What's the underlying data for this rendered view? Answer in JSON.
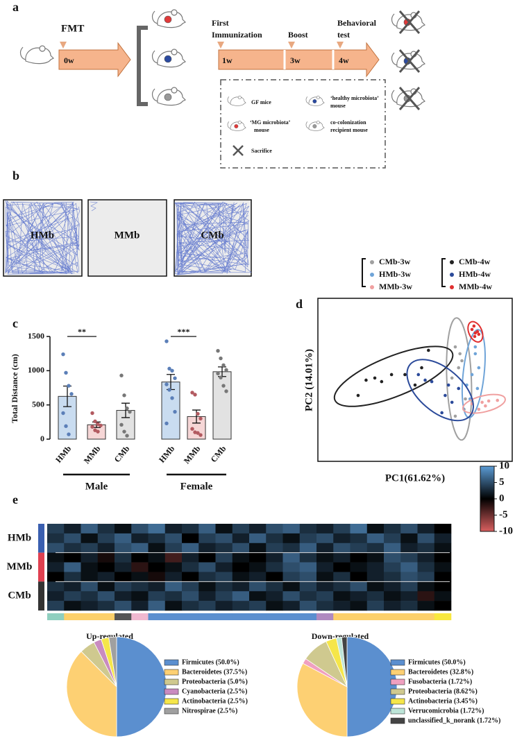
{
  "panel_labels": [
    "a",
    "b",
    "c",
    "d",
    "e"
  ],
  "panel_a": {
    "fmt": "FMT",
    "timepoints": [
      "0w",
      "1w",
      "3w",
      "4w"
    ],
    "steps": [
      [
        "First",
        "Immunization"
      ],
      [
        "Boost"
      ],
      [
        "Behavioral",
        "test"
      ]
    ],
    "legend": [
      [
        "GF mice"
      ],
      [
        "‘healthy microbiota’",
        "mouse"
      ],
      [
        "‘MG microbiota’",
        "mouse"
      ],
      [
        "co-colonization",
        "recipient mouse"
      ],
      [
        "Sacrifice"
      ]
    ]
  },
  "panel_b": {
    "arenas": [
      "HMb",
      "MMb",
      "CMb"
    ]
  },
  "chart_data": [
    {
      "type": "bar",
      "ylabel": "Total Distance (cm)",
      "categories": [
        "HMb",
        "MMb",
        "CMb",
        "HMb",
        "MMb",
        "CMb"
      ],
      "groups": [
        "Male",
        "Female"
      ],
      "values": [
        625,
        210,
        420,
        835,
        330,
        985
      ],
      "errors": [
        150,
        40,
        105,
        110,
        95,
        70
      ],
      "colors": [
        "#c9dcf0",
        "#f6d6d6",
        "#e2e2e2",
        "#c9dcf0",
        "#f6d6d6",
        "#e2e2e2"
      ],
      "point_colors": [
        "#5b7fb8",
        "#b25a60",
        "#777777",
        "#5b7fb8",
        "#b25a60",
        "#777777"
      ],
      "points": [
        [
          1240,
          970,
          780,
          660,
          380,
          190,
          70
        ],
        [
          380,
          260,
          220,
          200,
          180,
          130,
          110
        ],
        [
          930,
          640,
          450,
          400,
          210,
          110,
          50
        ],
        [
          1430,
          1030,
          1000,
          890,
          800,
          720,
          600,
          400,
          230
        ],
        [
          680,
          650,
          370,
          300,
          150,
          100,
          90,
          60
        ],
        [
          1290,
          1180,
          1080,
          1010,
          960,
          900,
          780,
          700
        ]
      ],
      "annotations": [
        "**",
        "***"
      ],
      "ylim": [
        0,
        1500
      ],
      "yticks": [
        0,
        500,
        1000,
        1500
      ]
    },
    {
      "type": "scatter",
      "xlabel": "PC1(61.62%)",
      "ylabel": "PC2 (14.01%)",
      "xlim": [
        0,
        100
      ],
      "ylim": [
        0,
        100
      ],
      "series": [
        {
          "name": "CMb-3w",
          "color": "#a0a0a0",
          "x": [
            70.7,
            72.4,
            74.1,
            69,
            75.9,
            70.7,
            75.2,
            73.1
          ],
          "y": [
            70.2,
            57.4,
            61.7,
            51.1,
            38.3,
            27.7,
            31.9,
            66
          ]
        },
        {
          "name": "HMb-3w",
          "color": "#6fa4d8",
          "x": [
            81,
            79.3,
            76.6,
            82.8,
            82.1,
            78.3,
            81
          ],
          "y": [
            66,
            53.2,
            46.8,
            57.4,
            44.7,
            38.3,
            70.2
          ]
        },
        {
          "name": "MMb-3w",
          "color": "#f0a0a0",
          "x": [
            79.3,
            84.5,
            87.9,
            82.8,
            86.2,
            92.4
          ],
          "y": [
            35.3,
            36.2,
            37,
            31.9,
            34,
            37.4
          ]
        },
        {
          "name": "CMb-4w",
          "color": "#222222",
          "x": [
            20.7,
            24.8,
            29.3,
            32.8,
            37.9,
            44.8,
            50,
            56.9,
            53.4
          ],
          "y": [
            40.4,
            49.8,
            51.1,
            48.9,
            53.2,
            53.2,
            46.8,
            68.1,
            57.4
          ]
        },
        {
          "name": "HMb-4w",
          "color": "#2b4a9a",
          "x": [
            51.7,
            58.6,
            63.8,
            65.5,
            69,
            72.4,
            55.2,
            67.2
          ],
          "y": [
            53.2,
            48.9,
            29.8,
            40.4,
            36.2,
            44.7,
            49.8,
            46.8
          ]
        },
        {
          "name": "MMb-4w",
          "color": "#e03030",
          "x": [
            79.3,
            81,
            82.8,
            80.7,
            82.1,
            80.3
          ],
          "y": [
            80.9,
            78.7,
            77.9,
            76.6,
            79.6,
            83
          ]
        }
      ]
    },
    {
      "type": "heatmap",
      "row_groups": [
        "HMb",
        "MMb",
        "CMb"
      ],
      "group_colors": [
        "#3a5fb0",
        "#e04050",
        "#333333"
      ],
      "values": [
        [
          4,
          2,
          6,
          3,
          1,
          5,
          7,
          2,
          3,
          6,
          1,
          4,
          2,
          5,
          6,
          3,
          2,
          4,
          7,
          1,
          3,
          5,
          2,
          0
        ],
        [
          3,
          5,
          1,
          4,
          6,
          2,
          3,
          5,
          0,
          4,
          5,
          2,
          6,
          3,
          1,
          4,
          5,
          2,
          3,
          6,
          4,
          1,
          5,
          2
        ],
        [
          5,
          3,
          4,
          2,
          5,
          6,
          1,
          4,
          6,
          2,
          3,
          5,
          1,
          4,
          3,
          6,
          2,
          5,
          4,
          3,
          6,
          2,
          3,
          1
        ],
        [
          1,
          0,
          2,
          -1,
          3,
          0,
          1,
          -3,
          2,
          0,
          4,
          1,
          0,
          2,
          6,
          3,
          1,
          2,
          0,
          1,
          5,
          4,
          2,
          0
        ],
        [
          2,
          6,
          1,
          0,
          2,
          -2,
          0,
          1,
          3,
          5,
          2,
          0,
          1,
          3,
          5,
          6,
          2,
          0,
          1,
          2,
          4,
          6,
          3,
          1
        ],
        [
          0,
          3,
          1,
          2,
          0,
          1,
          -1,
          2,
          0,
          3,
          4,
          1,
          2,
          0,
          4,
          5,
          1,
          3,
          0,
          2,
          3,
          5,
          4,
          0
        ],
        [
          3,
          2,
          5,
          1,
          4,
          3,
          2,
          6,
          4,
          1,
          3,
          2,
          5,
          3,
          1,
          4,
          2,
          3,
          5,
          1,
          2,
          4,
          1,
          0
        ],
        [
          2,
          4,
          3,
          5,
          2,
          1,
          4,
          3,
          5,
          2,
          4,
          6,
          1,
          2,
          5,
          3,
          4,
          1,
          2,
          3,
          1,
          2,
          -2,
          1
        ],
        [
          4,
          1,
          2,
          3,
          5,
          2,
          6,
          1,
          3,
          4,
          2,
          3,
          4,
          1,
          2,
          5,
          3,
          2,
          1,
          4,
          2,
          3,
          1,
          0
        ]
      ],
      "column_colors": [
        "#8fcfbf",
        "#fcd06a",
        "#fcd06a",
        "#fcd06a",
        "#555555",
        "#f0b8d0",
        "#5b8fcf",
        "#5b8fcf",
        "#5b8fcf",
        "#5b8fcf",
        "#5b8fcf",
        "#5b8fcf",
        "#5b8fcf",
        "#5b8fcf",
        "#5b8fcf",
        "#5b8fcf",
        "#b08ac0",
        "#fcd06a",
        "#fcd06a",
        "#fcd06a",
        "#fcd06a",
        "#fcd06a",
        "#fcd06a",
        "#f8e840"
      ],
      "colorscale": [
        "#d95f5f",
        "#000000",
        "#5b9bd5"
      ],
      "zlim": [
        -10,
        10
      ],
      "zticks": [
        10,
        5,
        0,
        -5,
        -10
      ]
    },
    {
      "type": "pie",
      "title": "Up-regulated",
      "categories": [
        "Firmicutes (50.0%)",
        "Bacteroidetes (37.5%)",
        "Proteobacteria (5.0%)",
        "Cyanobacteria (2.5%)",
        "Actinobacteria (2.5%)",
        "Nitrospirae (2.5%)"
      ],
      "values": [
        50.0,
        37.5,
        5.0,
        2.5,
        2.5,
        2.5
      ],
      "colors": [
        "#5b8fcf",
        "#fdd073",
        "#cfc98f",
        "#c98bc0",
        "#f5e64a",
        "#a0a0a0"
      ]
    },
    {
      "type": "pie",
      "title": "Down-regulated",
      "categories": [
        "Firmicutes (50.0%)",
        "Bacteroidetes (32.8%)",
        "Fusobacteria (1.72%)",
        "Proteobacteria (8.62%)",
        "Actinobacteria (3.45%)",
        "Verrucomicrobia (1.72%)",
        "unclassified_k_norank (1.72%)"
      ],
      "values": [
        50.0,
        32.8,
        1.72,
        8.62,
        3.45,
        1.72,
        1.72
      ],
      "colors": [
        "#5b8fcf",
        "#fdd073",
        "#f0a0c0",
        "#cfc98f",
        "#f5e64a",
        "#bde5d8",
        "#444444"
      ]
    }
  ]
}
